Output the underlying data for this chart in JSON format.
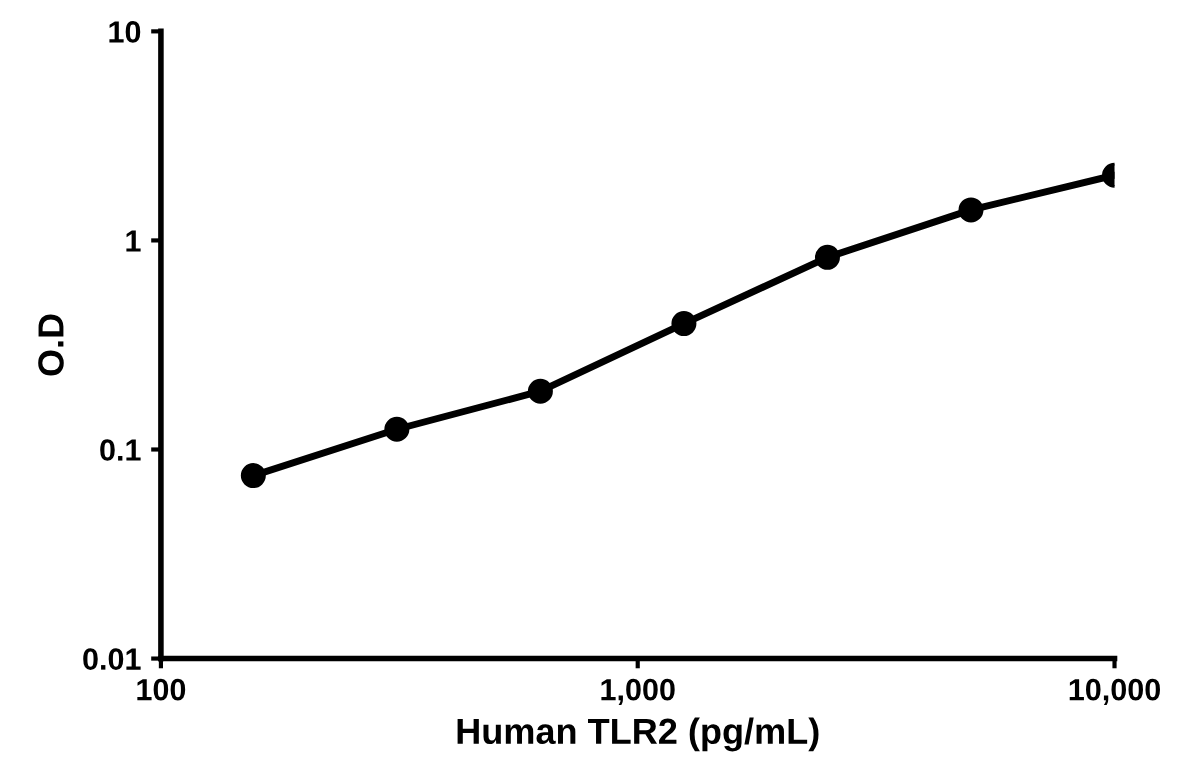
{
  "chart_data": {
    "type": "line",
    "xlabel": "Human TLR2 (pg/mL)",
    "ylabel": "O.D",
    "log": "xy",
    "marker": "circle",
    "line_style": "solid",
    "grid": false,
    "legend": false,
    "x": [
      156.25,
      312.5,
      625,
      1250,
      2500,
      5000,
      10000
    ],
    "series": [
      {
        "color": "#000000",
        "values": [
          0.075,
          0.125,
          0.19,
          0.4,
          0.83,
          1.4,
          2.05
        ]
      }
    ],
    "xlim": [
      100,
      10000
    ],
    "xticks": [
      100,
      {
        "value": 1000,
        "label": "1,000"
      },
      {
        "value": 10000,
        "label": "10,000"
      }
    ],
    "ylim": [
      0.01,
      10
    ],
    "yticks": [
      0.01,
      0.1,
      1,
      10
    ]
  }
}
